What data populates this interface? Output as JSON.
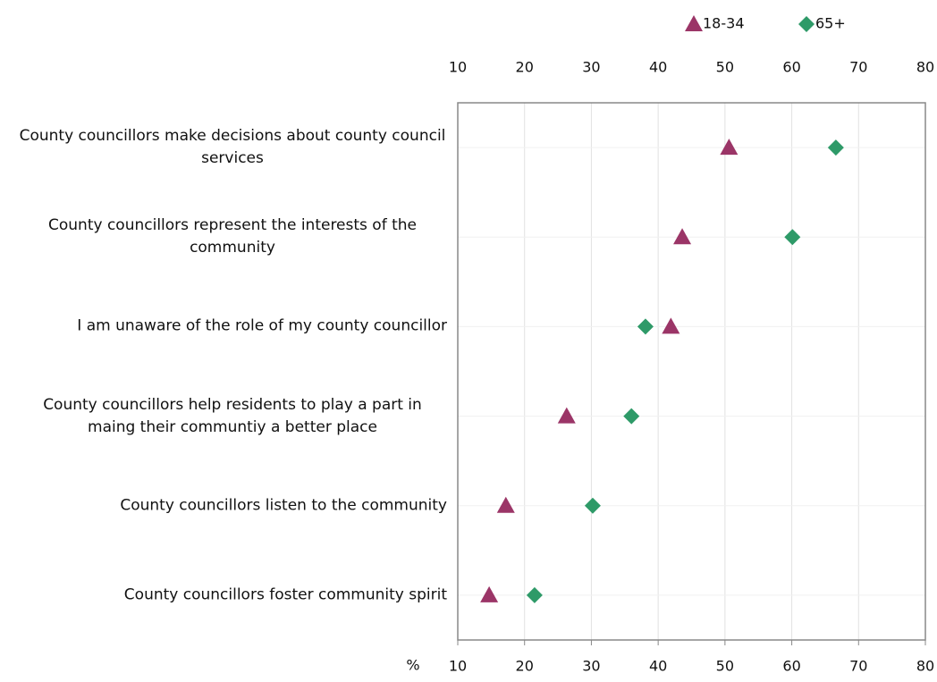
{
  "chart_data": {
    "type": "dot",
    "x_label": "%",
    "categories": [
      "County councillors make decisions about county council services",
      "County councillors represent the interests of the community",
      "I am unaware of the role of my county councillor",
      "County councillors help residents to play a part in maing their communtiy a better place",
      "County councillors listen to the community",
      "County councillors foster community spirit"
    ],
    "series": [
      {
        "name": "18-34",
        "color": "#9b3567",
        "marker": "triangle",
        "values": [
          50.6,
          43.6,
          41.9,
          26.3,
          17.2,
          14.7
        ]
      },
      {
        "name": "65+",
        "color": "#2e9a68",
        "marker": "diamond",
        "values": [
          66.6,
          60.1,
          38.1,
          36.0,
          30.2,
          21.5
        ]
      }
    ],
    "xlim": [
      10,
      80
    ],
    "xticks": [
      10,
      20,
      30,
      40,
      50,
      60,
      70,
      80
    ],
    "grid": true,
    "legend": "top"
  }
}
